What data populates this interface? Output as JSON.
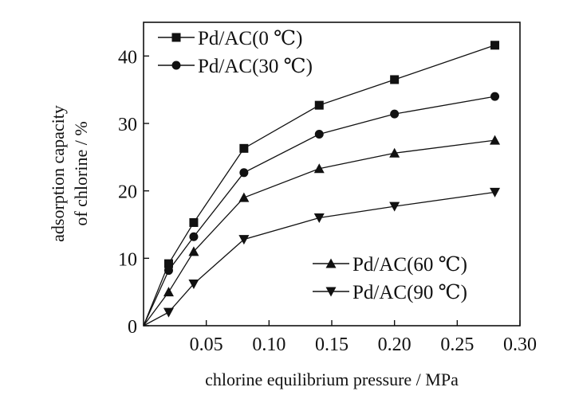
{
  "chart_data": {
    "type": "line",
    "title": "",
    "xlabel": "chlorine equilibrium pressure / MPa",
    "ylabel_lines": [
      "adsorption capacity",
      "of chlorine / %"
    ],
    "xlim": [
      0,
      0.3
    ],
    "ylim": [
      0,
      45
    ],
    "x_ticks": [
      0.05,
      0.1,
      0.15,
      0.2,
      0.25,
      0.3
    ],
    "x_tick_labels": [
      "0.05",
      "0.10",
      "0.15",
      "0.20",
      "0.25",
      "0.30"
    ],
    "y_ticks": [
      0,
      10,
      20,
      30,
      40
    ],
    "y_tick_labels": [
      "0",
      "10",
      "20",
      "30",
      "40"
    ],
    "grid": false,
    "line_color": "#111111",
    "series": [
      {
        "name": "Pd/AC(0 ℃)",
        "marker": "square",
        "x": [
          0,
          0.02,
          0.04,
          0.08,
          0.14,
          0.2,
          0.28
        ],
        "values": [
          0,
          9.2,
          15.3,
          26.3,
          32.7,
          36.5,
          41.6
        ]
      },
      {
        "name": "Pd/AC(30 ℃)",
        "marker": "circle",
        "x": [
          0,
          0.02,
          0.04,
          0.08,
          0.14,
          0.2,
          0.28
        ],
        "values": [
          0,
          8.2,
          13.2,
          22.7,
          28.4,
          31.4,
          34.0
        ]
      },
      {
        "name": "Pd/AC(60 ℃)",
        "marker": "triangle-up",
        "x": [
          0,
          0.02,
          0.04,
          0.08,
          0.14,
          0.2,
          0.28
        ],
        "values": [
          0,
          5.0,
          11.0,
          19.0,
          23.3,
          25.6,
          27.5
        ]
      },
      {
        "name": "Pd/AC(90 ℃)",
        "marker": "triangle-down",
        "x": [
          0,
          0.02,
          0.04,
          0.08,
          0.14,
          0.2,
          0.28
        ],
        "values": [
          0,
          2.0,
          6.2,
          12.8,
          16.0,
          17.7,
          19.8
        ]
      }
    ],
    "legend_groups": [
      {
        "placement": "top-left",
        "series_indices": [
          0,
          1
        ]
      },
      {
        "placement": "bottom-right",
        "series_indices": [
          2,
          3
        ]
      }
    ]
  }
}
